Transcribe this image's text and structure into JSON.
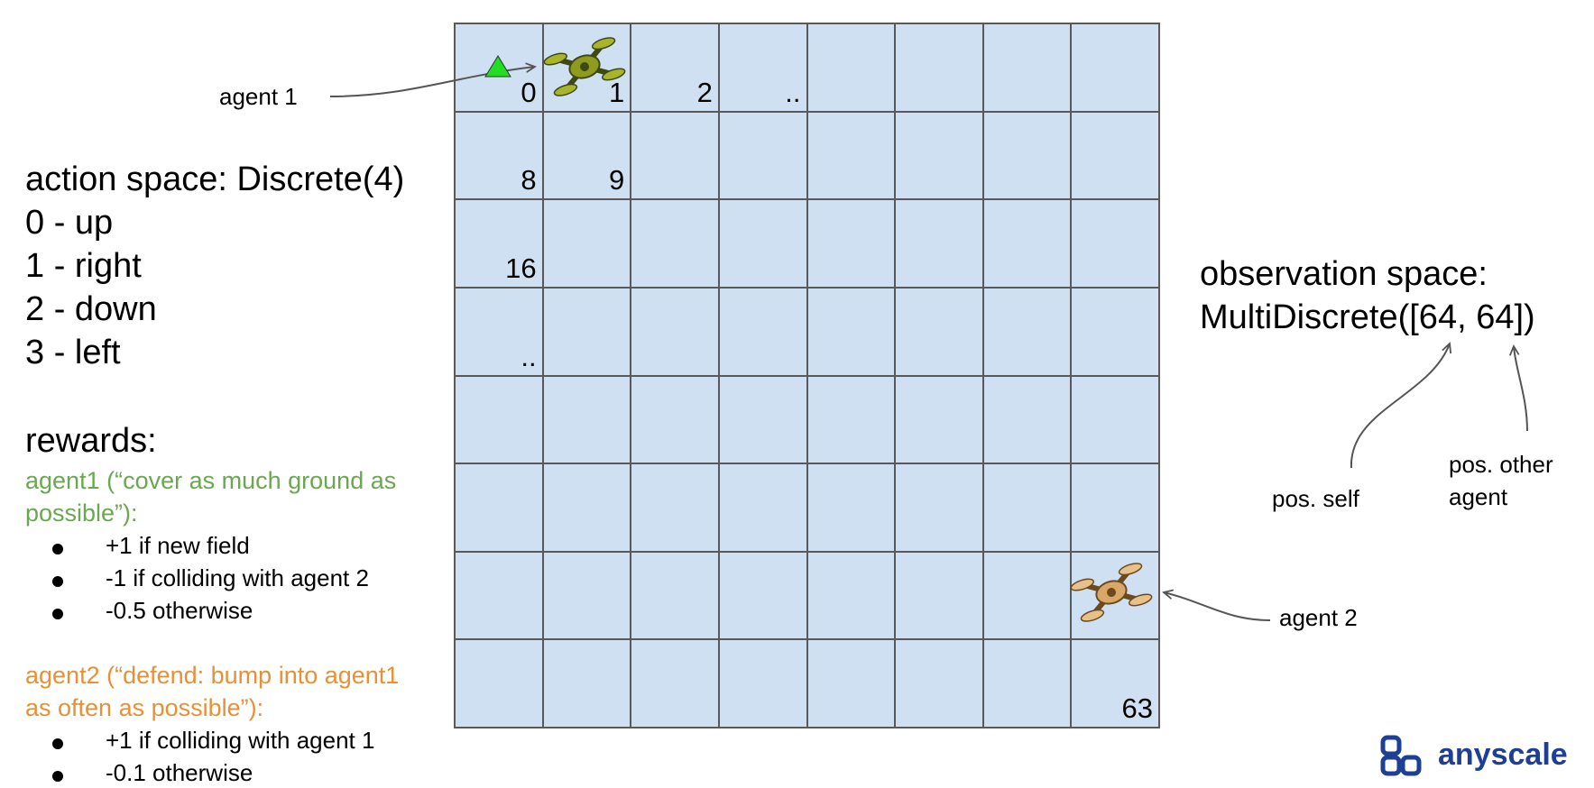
{
  "left": {
    "action_title": "action space: Discrete(4)",
    "actions": [
      "0 - up",
      "1 - right",
      "2 - down",
      "3 - left"
    ],
    "rewards_title": "rewards:",
    "agent1_heading_line1": "agent1 (“cover as much ground as",
    "agent1_heading_line2": "possible”):",
    "agent1_rewards": [
      "+1 if new field",
      "-1 if colliding with agent 2",
      "-0.5 otherwise"
    ],
    "agent2_heading_line1": "agent2 (“defend: bump into agent1",
    "agent2_heading_line2": "as often as possible”):",
    "agent2_rewards": [
      "+1 if colliding with agent 1",
      "-0.1 otherwise"
    ]
  },
  "labels": {
    "agent1": "agent 1",
    "agent2": "agent 2"
  },
  "grid": {
    "size": 8,
    "cell_numbers": [
      "0",
      "1",
      "2",
      "..",
      "8",
      "9",
      "16",
      "..",
      "63"
    ]
  },
  "observation": {
    "title_line1": "observation space:",
    "title_line2": "MultiDiscrete([64, 64])",
    "pos_self": "pos. self",
    "pos_other_line1": "pos. other",
    "pos_other_line2": "agent"
  },
  "brand": {
    "name": "anyscale"
  },
  "colors": {
    "agent1_text": "#6aa84f",
    "agent2_text": "#e69138",
    "grid_fill": "#cfe0f2",
    "agent1_marker": "#22dd22",
    "brand": "#1e3f96"
  }
}
